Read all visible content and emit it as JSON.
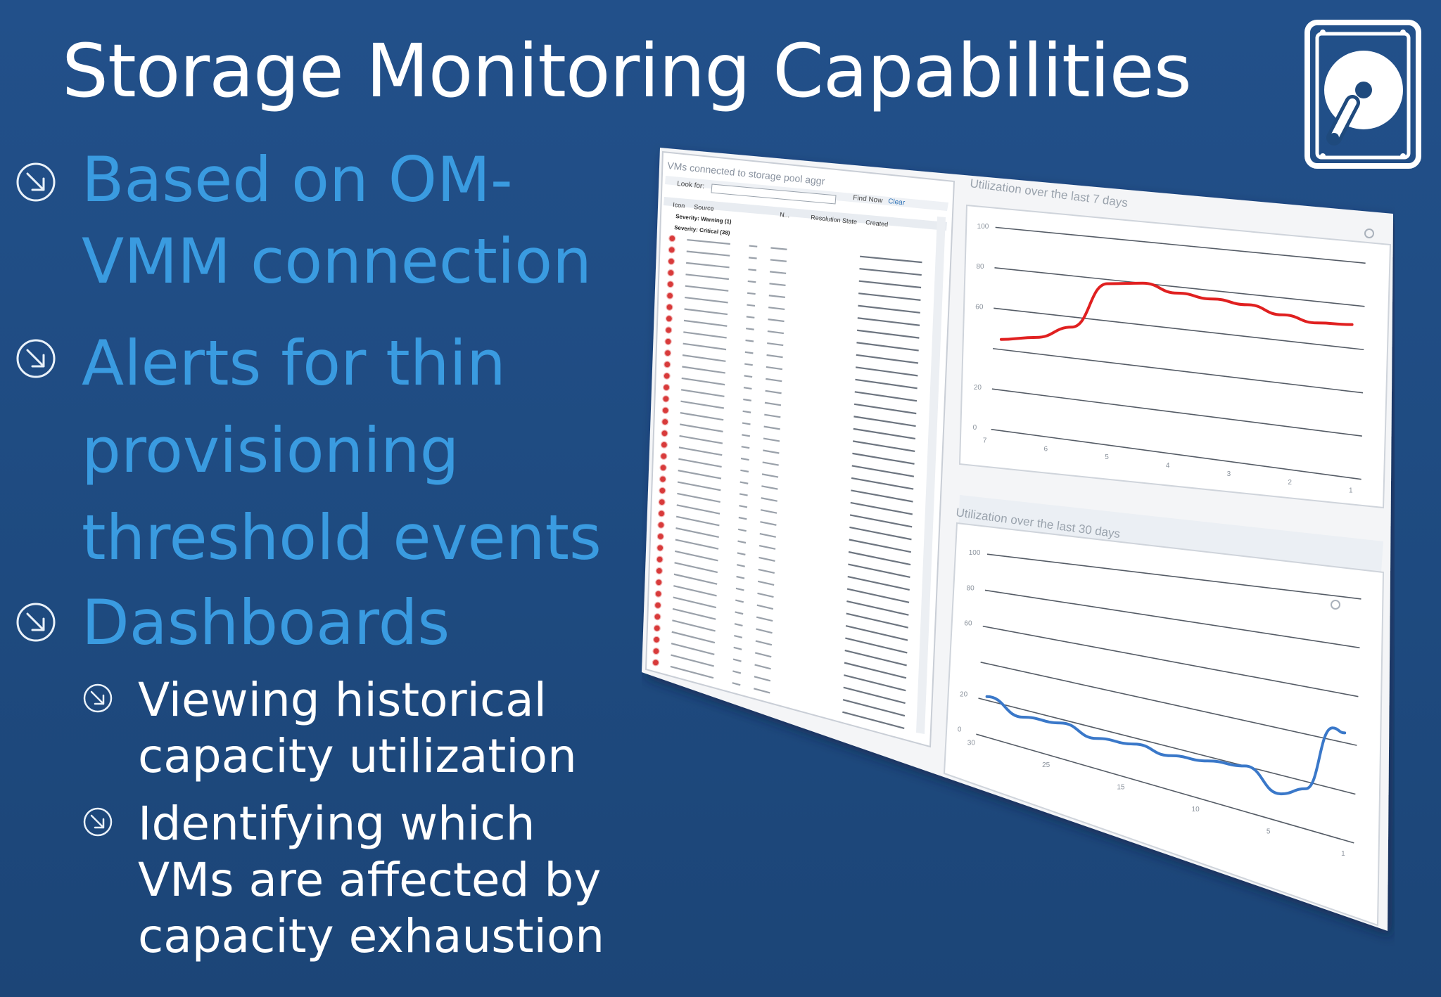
{
  "slide": {
    "title": "Storage Monitoring Capabilities",
    "bullets": [
      {
        "lines": [
          "Based on OM-",
          "VMM connection"
        ]
      },
      {
        "lines": [
          "Alerts for thin",
          "provisioning",
          "threshold events"
        ]
      },
      {
        "lines": [
          "Dashboards"
        ]
      }
    ],
    "sub_bullets": [
      {
        "lines": [
          "Viewing historical",
          "capacity utilization"
        ]
      },
      {
        "lines": [
          "Identifying which",
          "VMs are affected by",
          "capacity exhaustion"
        ]
      }
    ]
  },
  "colors": {
    "background": "#1f4a7d",
    "title": "#ffffff",
    "bullet_text": "#3a9be0",
    "sub_bullet_text": "#ffffff",
    "series_7_days": "#e02020",
    "series_30_days": "#3a78c9"
  },
  "icons": {
    "bullet": "circle-arrow-down-right-icon",
    "logo": "hard-drive-icon",
    "alert": "critical-alert-icon"
  },
  "screenshot": {
    "panel_title": "VMs connected to storage pool aggr",
    "look_for_label": "Look for:",
    "find_now_label": "Find Now",
    "clear_label": "Clear",
    "columns": [
      "Icon",
      "Source",
      "N...",
      "Resolution State",
      "Created"
    ],
    "groups": [
      "Severity: Warning (1)",
      "Severity: Critical (38)"
    ],
    "chart_titles": [
      "Utilization over the last 7 days",
      "Utilization over the last 30 days"
    ],
    "chart7_ylabels": [
      "100",
      "80",
      "60",
      "20",
      "0"
    ],
    "chart7_xlabels": [
      "7",
      "6",
      "5",
      "4",
      "3",
      "2",
      "1"
    ],
    "chart30_ylabels": [
      "100",
      "80",
      "60",
      "20",
      "0"
    ],
    "chart30_xlabels": [
      "30",
      "25",
      "15",
      "10",
      "5",
      "1"
    ]
  },
  "chart_data": [
    {
      "type": "line",
      "title": "Utilization over the last 7 days",
      "x": [
        6,
        5.5,
        5,
        4.5,
        4,
        3.5,
        3,
        2.5,
        2,
        1.5,
        1
      ],
      "series": [
        {
          "values": [
            45,
            48,
            55,
            78,
            80,
            77,
            76,
            75,
            72,
            70,
            71
          ]
        }
      ],
      "ylim": [
        0,
        100
      ],
      "grid": true
    },
    {
      "type": "line",
      "title": "Utilization over the last 30 days",
      "x": [
        30,
        27,
        24,
        21,
        18,
        15,
        12,
        9,
        6,
        4,
        2,
        1
      ],
      "series": [
        {
          "values": [
            22,
            16,
            18,
            15,
            17,
            16,
            18,
            20,
            12,
            17,
            45,
            44
          ]
        }
      ],
      "ylim": [
        0,
        100
      ],
      "grid": true
    }
  ]
}
